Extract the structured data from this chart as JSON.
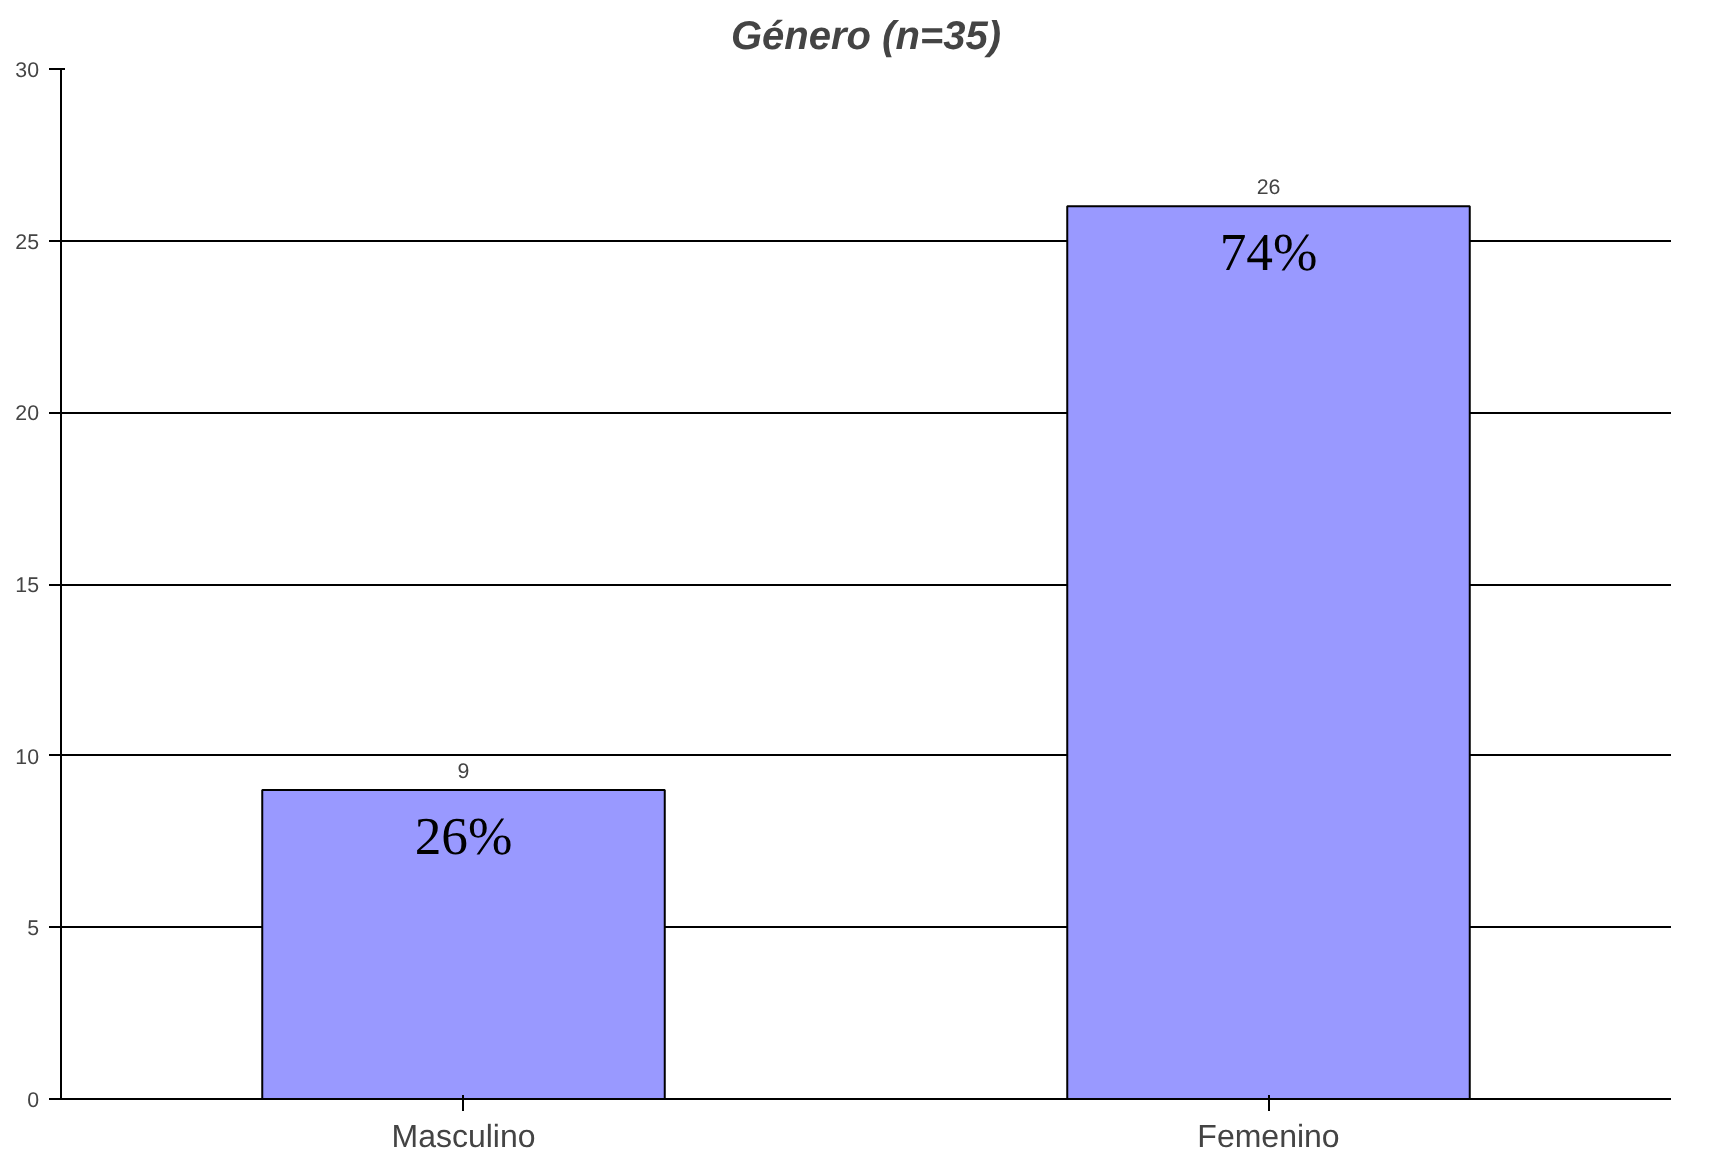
{
  "chart_data": {
    "type": "bar",
    "title": "Género (n=35)",
    "categories": [
      "Masculino",
      "Femenino"
    ],
    "values": [
      9,
      26
    ],
    "color": "#9999ff",
    "ylim": [
      0,
      30
    ],
    "yticks": [
      0,
      5,
      10,
      15,
      20,
      25,
      30
    ],
    "grid": "y",
    "data_labels": true,
    "annotations": [
      {
        "text": "26%",
        "x": "Masculino",
        "y": 9
      },
      {
        "text": "74%",
        "x": "Femenino",
        "y": 26
      }
    ]
  }
}
